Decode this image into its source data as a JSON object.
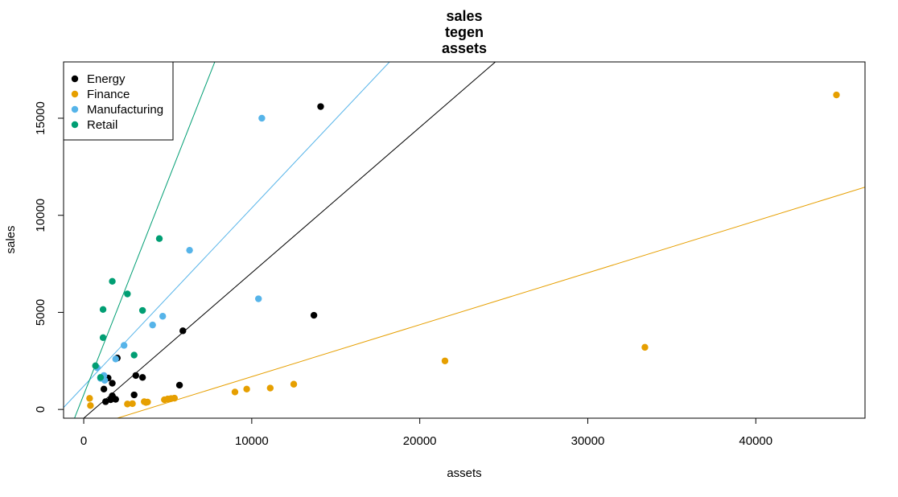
{
  "chart_data": {
    "type": "scatter",
    "title_lines": [
      "sales",
      "tegen",
      "assets"
    ],
    "xlabel": "assets",
    "ylabel": "sales",
    "xlim": [
      -1200,
      46500
    ],
    "ylim": [
      -450,
      17900
    ],
    "x_ticks": [
      0,
      10000,
      20000,
      30000,
      40000
    ],
    "y_ticks": [
      0,
      5000,
      10000,
      15000
    ],
    "x_tick_labels": [
      "0",
      "10000",
      "20000",
      "30000",
      "40000"
    ],
    "y_tick_labels": [
      "0",
      "5000",
      "10000",
      "15000"
    ],
    "legend_position": "top-left",
    "grid": false,
    "series": [
      {
        "name": "Energy",
        "color": "#000000",
        "points": [
          [
            14100,
            15600
          ],
          [
            13700,
            4850
          ],
          [
            5900,
            4050
          ],
          [
            2000,
            2650
          ],
          [
            1450,
            1620
          ],
          [
            1700,
            1350
          ],
          [
            1200,
            1050
          ],
          [
            3100,
            1750
          ],
          [
            3500,
            1650
          ],
          [
            5700,
            1250
          ],
          [
            3000,
            750
          ],
          [
            1700,
            700
          ],
          [
            1750,
            600
          ],
          [
            1600,
            500
          ],
          [
            1300,
            400
          ],
          [
            1900,
            520
          ]
        ],
        "fit_line": [
          [
            0,
            -450
          ],
          [
            24500,
            17900
          ]
        ]
      },
      {
        "name": "Finance",
        "color": "#E69F00",
        "points": [
          [
            44800,
            16200
          ],
          [
            33400,
            3200
          ],
          [
            21500,
            2500
          ],
          [
            12500,
            1300
          ],
          [
            11100,
            1100
          ],
          [
            9700,
            1050
          ],
          [
            9000,
            900
          ],
          [
            5400,
            580
          ],
          [
            5200,
            560
          ],
          [
            5000,
            540
          ],
          [
            4800,
            500
          ],
          [
            3800,
            380
          ],
          [
            3600,
            400
          ],
          [
            2900,
            300
          ],
          [
            2600,
            280
          ],
          [
            400,
            200
          ],
          [
            350,
            570
          ],
          [
            3700,
            360
          ]
        ],
        "fit_line": [
          [
            2000,
            -450
          ],
          [
            46500,
            11450
          ]
        ]
      },
      {
        "name": "Manufacturing",
        "color": "#56B4E9",
        "points": [
          [
            10600,
            15000
          ],
          [
            6300,
            8200
          ],
          [
            10400,
            5700
          ],
          [
            4700,
            4800
          ],
          [
            4100,
            4350
          ],
          [
            2400,
            3300
          ],
          [
            1900,
            2600
          ],
          [
            800,
            2150
          ],
          [
            1200,
            1750
          ],
          [
            1000,
            1600
          ],
          [
            1250,
            1500
          ]
        ],
        "fit_line": [
          [
            -1200,
            100
          ],
          [
            18200,
            17900
          ]
        ]
      },
      {
        "name": "Retail",
        "color": "#009E73",
        "points": [
          [
            4500,
            8800
          ],
          [
            1700,
            6600
          ],
          [
            2600,
            5950
          ],
          [
            3500,
            5100
          ],
          [
            1150,
            5150
          ],
          [
            1150,
            3700
          ],
          [
            3000,
            2800
          ],
          [
            700,
            2250
          ],
          [
            1000,
            1650
          ]
        ],
        "fit_line": [
          [
            -550,
            -450
          ],
          [
            7800,
            17900
          ]
        ]
      }
    ]
  }
}
